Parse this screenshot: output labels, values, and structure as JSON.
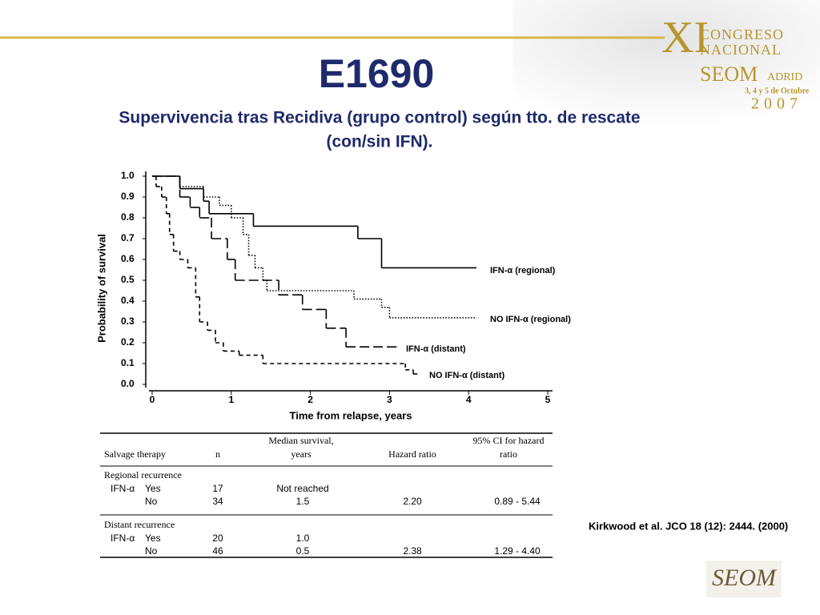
{
  "header": {
    "title": "E1690",
    "subtitle_lines": [
      "Supervivencia tras Recidiva (grupo control) según tto. de rescate",
      "(con/sin IFN)."
    ]
  },
  "logo": {
    "roman": "XI",
    "line1": "CONGRESO",
    "line2": "NACIONAL",
    "city_a": "SEOM",
    "city_b": "ADRID",
    "dates": "3, 4 y 5 de Octubre",
    "year": "2007",
    "bottom": "SEOM"
  },
  "chart_data": {
    "type": "line",
    "step": true,
    "x_label": "Time from relapse, years",
    "y_label": "Probability of survival",
    "xlim": [
      0,
      5
    ],
    "xticks": [
      0,
      1,
      2,
      3,
      4,
      5
    ],
    "ylim": [
      0,
      1
    ],
    "yticks": [
      {
        "value": 0,
        "label": "0.0"
      },
      0.1,
      0.2,
      0.3,
      0.4,
      0.5,
      0.6,
      0.7,
      0.8,
      0.9,
      {
        "value": 1,
        "label": "1.0"
      }
    ],
    "series": [
      {
        "name": "IFN-α (regional)",
        "color": "#000000",
        "dash": "solid",
        "x": [
          0,
          0.35,
          0.65,
          0.72,
          1.28,
          2.6,
          2.9,
          4.1
        ],
        "values": [
          1.0,
          0.94,
          0.88,
          0.82,
          0.76,
          0.7,
          0.56,
          0.56
        ]
      },
      {
        "name": "NO IFN-α (regional)",
        "color": "#000000",
        "dash": "dotted",
        "x": [
          0,
          0.35,
          0.65,
          0.85,
          1.0,
          1.15,
          1.22,
          1.3,
          1.4,
          1.45,
          2.55,
          2.9,
          3.0,
          4.1
        ],
        "values": [
          1.0,
          0.95,
          0.9,
          0.86,
          0.8,
          0.72,
          0.62,
          0.56,
          0.5,
          0.45,
          0.41,
          0.37,
          0.32,
          0.32
        ]
      },
      {
        "name": "IFN-α (distant)",
        "color": "#000000",
        "dash": "long-dash",
        "x": [
          0,
          0.35,
          0.48,
          0.6,
          0.75,
          0.95,
          1.05,
          1.6,
          1.9,
          2.2,
          2.45,
          3.1
        ],
        "values": [
          1.0,
          0.9,
          0.85,
          0.8,
          0.7,
          0.6,
          0.5,
          0.43,
          0.36,
          0.27,
          0.18,
          0.18
        ]
      },
      {
        "name": "NO IFN-α (distant)",
        "color": "#000000",
        "dash": "dash",
        "x": [
          0,
          0.05,
          0.12,
          0.18,
          0.22,
          0.27,
          0.35,
          0.45,
          0.55,
          0.6,
          0.7,
          0.8,
          0.9,
          1.1,
          1.4,
          3.2,
          3.3,
          3.35
        ],
        "values": [
          1.0,
          0.95,
          0.9,
          0.82,
          0.72,
          0.64,
          0.6,
          0.56,
          0.42,
          0.3,
          0.26,
          0.2,
          0.16,
          0.14,
          0.1,
          0.07,
          0.05,
          0.05
        ]
      }
    ]
  },
  "table": {
    "header": {
      "therapy": "Salvage therapy",
      "n": "n",
      "median": [
        "Median survival,",
        "years"
      ],
      "hr": "Hazard ratio",
      "ci": [
        "95% CI for hazard",
        "ratio"
      ]
    },
    "sections": [
      {
        "title": "Regional recurrence",
        "group": "IFN-α",
        "rows": [
          {
            "label": "Yes",
            "n": "17",
            "median": "Not reached"
          },
          {
            "label": "No",
            "n": "34",
            "median": "1.5",
            "hr": "2.20",
            "ci": "0.89 - 5.44"
          }
        ]
      },
      {
        "title": "Distant recurrence",
        "group": "IFN-α",
        "rows": [
          {
            "label": "Yes",
            "n": "20",
            "median": "1.0"
          },
          {
            "label": "No",
            "n": "46",
            "median": "0.5",
            "hr": "2.38",
            "ci": "1.29 - 4.40"
          }
        ]
      }
    ]
  },
  "citation": "Kirkwood et al. JCO 18 (12): 2444. (2000)"
}
